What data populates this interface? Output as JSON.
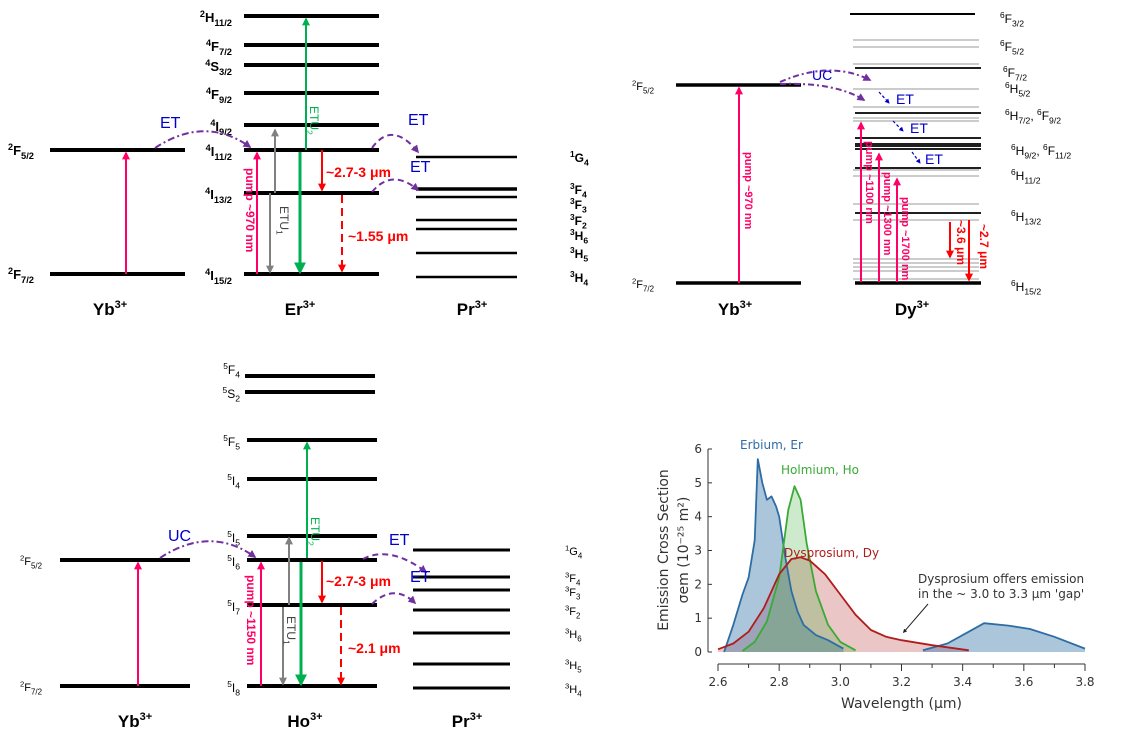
{
  "panel_er": {
    "species": [
      {
        "t": "Yb",
        "sup": "3+"
      },
      {
        "t": "Er",
        "sup": "3+"
      },
      {
        "t": "Pr",
        "sup": "3+"
      }
    ],
    "yb_levels": [
      [
        {
          "sup": "2",
          "t": "F",
          "sub": "5/2"
        }
      ],
      [
        {
          "sup": "2",
          "t": "F",
          "sub": "7/2"
        }
      ]
    ],
    "er_levels": [
      [
        {
          "sup": "2",
          "t": "H",
          "sub": "11/2"
        }
      ],
      [
        {
          "sup": "4",
          "t": "F",
          "sub": "7/2"
        }
      ],
      [
        {
          "sup": "4",
          "t": "S",
          "sub": "3/2"
        }
      ],
      [
        {
          "sup": "4",
          "t": "F",
          "sub": "9/2"
        }
      ],
      [
        {
          "sup": "4",
          "t": "I",
          "sub": "9/2"
        }
      ],
      [
        {
          "sup": "4",
          "t": "I",
          "sub": "11/2"
        }
      ],
      [
        {
          "sup": "4",
          "t": "I",
          "sub": "13/2"
        }
      ],
      [
        {
          "sup": "4",
          "t": "I",
          "sub": "15/2"
        }
      ]
    ],
    "pr_levels": [
      [
        {
          "sup": "1",
          "t": "G",
          "sub": "4"
        }
      ],
      [
        {
          "sup": "3",
          "t": "F",
          "sub": "4"
        }
      ],
      [
        {
          "sup": "3",
          "t": "F",
          "sub": "3"
        }
      ],
      [
        {
          "sup": "3",
          "t": "F",
          "sub": "2"
        }
      ],
      [
        {
          "sup": "3",
          "t": "H",
          "sub": "6"
        }
      ],
      [
        {
          "sup": "3",
          "t": "H",
          "sub": "5"
        }
      ],
      [
        {
          "sup": "3",
          "t": "H",
          "sub": "4"
        }
      ]
    ],
    "pump": "pump ~970 nm",
    "etu1": [
      {
        "t": "ETU",
        "sub": "1"
      }
    ],
    "etu2": [
      {
        "t": "ETU",
        "sub": "2"
      }
    ],
    "emission_mid": "~2.7-3 μm",
    "emission_low": "~1.55 μm",
    "transfer": [
      "ET",
      "ET",
      "ET"
    ]
  },
  "panel_dy": {
    "species": [
      {
        "t": "Yb",
        "sup": "3+"
      },
      {
        "t": "Dy",
        "sup": "3+"
      }
    ],
    "yb_levels": [
      [
        {
          "sup": "2",
          "t": "F",
          "sub": "5/2"
        }
      ],
      [
        {
          "sup": "2",
          "t": "F",
          "sub": "7/2"
        }
      ]
    ],
    "dy_levels": [
      [
        {
          "sup": "6",
          "t": "F",
          "sub": "3/2"
        }
      ],
      [
        {
          "sup": "6",
          "t": "F",
          "sub": "5/2"
        }
      ],
      [
        {
          "sup": "6",
          "t": "F",
          "sub": "7/2"
        }
      ],
      [
        {
          "sup": "6",
          "t": "H",
          "sub": "5/2"
        }
      ],
      [
        {
          "sup": "6",
          "t": "H",
          "sub": "7/2"
        },
        {
          "sup": "6",
          "t": "F",
          "sub": "9/2"
        }
      ],
      [
        {
          "sup": "6",
          "t": "H",
          "sub": "9/2"
        },
        {
          "sup": "6",
          "t": "F",
          "sub": "11/2"
        }
      ],
      [
        {
          "sup": "6",
          "t": "H",
          "sub": "11/2"
        }
      ],
      [
        {
          "sup": "6",
          "t": "H",
          "sub": "13/2"
        }
      ],
      [
        {
          "sup": "6",
          "t": "H",
          "sub": "15/2"
        }
      ]
    ],
    "pump_yb": "pump ~970 nm",
    "pumps": [
      "pump ~1100 nm",
      "pump ~1300 nm",
      "pump ~1700 nm"
    ],
    "emissions": [
      "~3.6 μm",
      "~2.7 μm"
    ],
    "upconversion": "UC",
    "transfer": [
      "ET",
      "ET",
      "ET"
    ]
  },
  "panel_ho": {
    "species": [
      {
        "t": "Yb",
        "sup": "3+"
      },
      {
        "t": "Ho",
        "sup": "3+"
      },
      {
        "t": "Pr",
        "sup": "3+"
      }
    ],
    "yb_levels": [
      [
        {
          "sup": "2",
          "t": "F",
          "sub": "5/2"
        }
      ],
      [
        {
          "sup": "2",
          "t": "F",
          "sub": "7/2"
        }
      ]
    ],
    "ho_levels": [
      [
        {
          "sup": "5",
          "t": "F",
          "sub": "4"
        }
      ],
      [
        {
          "sup": "5",
          "t": "S",
          "sub": "2"
        }
      ],
      [
        {
          "sup": "5",
          "t": "F",
          "sub": "5"
        }
      ],
      [
        {
          "sup": "5",
          "t": "I",
          "sub": "4"
        }
      ],
      [
        {
          "sup": "5",
          "t": "I",
          "sub": "5"
        }
      ],
      [
        {
          "sup": "5",
          "t": "I",
          "sub": "6"
        }
      ],
      [
        {
          "sup": "5",
          "t": "I",
          "sub": "7"
        }
      ],
      [
        {
          "sup": "5",
          "t": "I",
          "sub": "8"
        }
      ]
    ],
    "pr_levels": [
      [
        {
          "sup": "1",
          "t": "G",
          "sub": "4"
        }
      ],
      [
        {
          "sup": "3",
          "t": "F",
          "sub": "4"
        }
      ],
      [
        {
          "sup": "3",
          "t": "F",
          "sub": "3"
        }
      ],
      [
        {
          "sup": "3",
          "t": "F",
          "sub": "2"
        }
      ],
      [
        {
          "sup": "3",
          "t": "H",
          "sub": "6"
        }
      ],
      [
        {
          "sup": "3",
          "t": "H",
          "sub": "5"
        }
      ],
      [
        {
          "sup": "3",
          "t": "H",
          "sub": "4"
        }
      ]
    ],
    "pump": "pump ~1150 nm",
    "etu1": [
      {
        "t": "ETU",
        "sub": "1"
      }
    ],
    "etu2": [
      {
        "t": "ETU",
        "sub": "2"
      }
    ],
    "emission_mid": "~2.7-3 μm",
    "emission_low": "~2.1 μm",
    "upconversion": "UC",
    "transfer": [
      "ET",
      "ET"
    ]
  },
  "colors": {
    "pump": "#ff0066",
    "etu1": "#808080",
    "etu2": "#00b050",
    "emission": "#ff0000",
    "transfer": "#7030a0",
    "label": "#0000cc"
  },
  "chart_data": {
    "type": "area",
    "xlabel": "Wavelength (μm)",
    "ylabel_line1": "Emission Cross Section",
    "ylabel_line2": "σem (10⁻²⁵ m²)",
    "xlim": [
      2.6,
      3.8
    ],
    "ylim": [
      0,
      6
    ],
    "xticks": [
      "2.6",
      "2.8",
      "3.0",
      "3.2",
      "3.4",
      "3.6",
      "3.8"
    ],
    "yticks": [
      "0",
      "1",
      "2",
      "3",
      "4",
      "5",
      "6"
    ],
    "grid": false,
    "series": [
      {
        "name": "Erbium, Er",
        "color": "#2e6da4",
        "segments": [
          [
            [
              2.62,
              0
            ],
            [
              2.65,
              0.8
            ],
            [
              2.68,
              1.7
            ],
            [
              2.7,
              2.2
            ],
            [
              2.72,
              3.3
            ],
            [
              2.73,
              5.7
            ],
            [
              2.745,
              5.0
            ],
            [
              2.76,
              4.5
            ],
            [
              2.775,
              4.6
            ],
            [
              2.79,
              4.3
            ],
            [
              2.8,
              4.0
            ],
            [
              2.82,
              2.8
            ],
            [
              2.84,
              1.8
            ],
            [
              2.86,
              1.2
            ],
            [
              2.88,
              0.8
            ],
            [
              2.92,
              0.5
            ],
            [
              2.96,
              0.35
            ],
            [
              3.0,
              0.15
            ],
            [
              3.01,
              0.1
            ]
          ],
          [
            [
              3.27,
              0.05
            ],
            [
              3.35,
              0.25
            ],
            [
              3.42,
              0.6
            ],
            [
              3.47,
              0.85
            ],
            [
              3.55,
              0.78
            ],
            [
              3.62,
              0.68
            ],
            [
              3.7,
              0.45
            ],
            [
              3.8,
              0.1
            ]
          ]
        ]
      },
      {
        "name": "Holmium, Ho",
        "color": "#3aaa35",
        "segments": [
          [
            [
              2.68,
              0.03
            ],
            [
              2.72,
              0.3
            ],
            [
              2.76,
              0.9
            ],
            [
              2.8,
              2.2
            ],
            [
              2.83,
              4.2
            ],
            [
              2.85,
              4.9
            ],
            [
              2.87,
              4.5
            ],
            [
              2.89,
              3.2
            ],
            [
              2.92,
              1.8
            ],
            [
              2.96,
              0.8
            ],
            [
              3.0,
              0.3
            ],
            [
              3.05,
              0.05
            ]
          ]
        ]
      },
      {
        "name": "Dysprosium, Dy",
        "color": "#b01c1c",
        "segments": [
          [
            [
              2.6,
              0.08
            ],
            [
              2.65,
              0.25
            ],
            [
              2.7,
              0.6
            ],
            [
              2.75,
              1.3
            ],
            [
              2.8,
              2.3
            ],
            [
              2.84,
              2.75
            ],
            [
              2.87,
              2.8
            ],
            [
              2.9,
              2.7
            ],
            [
              2.95,
              2.3
            ],
            [
              3.0,
              1.7
            ],
            [
              3.05,
              1.1
            ],
            [
              3.1,
              0.65
            ],
            [
              3.15,
              0.45
            ],
            [
              3.2,
              0.35
            ],
            [
              3.3,
              0.2
            ],
            [
              3.42,
              0.05
            ]
          ]
        ]
      }
    ],
    "annotation": {
      "line1": "Dysprosium offers emission",
      "line2": "in the ~ 3.0 to 3.3 μm 'gap'",
      "points_to": [
        3.2,
        0.55
      ]
    }
  }
}
